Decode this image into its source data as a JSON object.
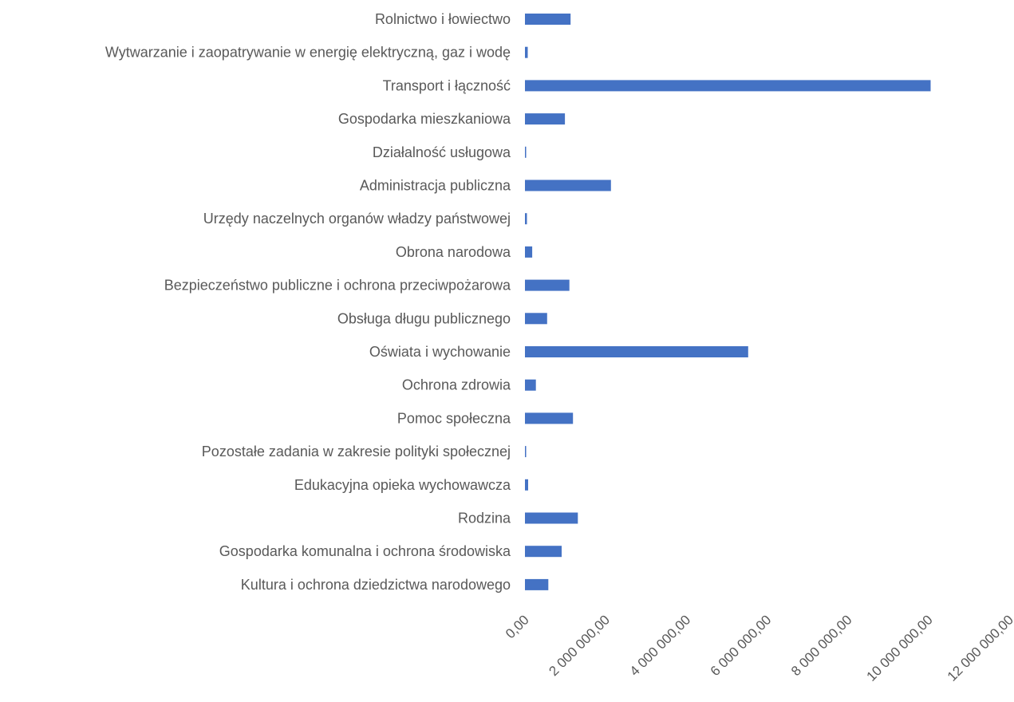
{
  "chart_data": {
    "type": "bar",
    "orientation": "horizontal",
    "title": "",
    "xlabel": "",
    "ylabel": "",
    "xlim": [
      0,
      12000000
    ],
    "grid": false,
    "legend": "none",
    "bar_color": "#4472C4",
    "categories": [
      "Rolnictwo i łowiectwo",
      "Wytwarzanie i zaopatrywanie w energię elektryczną, gaz i wodę",
      "Transport i łączność",
      "Gospodarka mieszkaniowa",
      "Działalność usługowa",
      "Administracja publiczna",
      "Urzędy naczelnych organów władzy państwowej",
      "Obrona narodowa",
      "Bezpieczeństwo publiczne i ochrona przeciwpożarowa",
      "Obsługa długu publicznego",
      "Oświata i wychowanie",
      "Ochrona zdrowia",
      "Pomoc społeczna",
      "Pozostałe zadania w zakresie polityki społecznej",
      "Edukacyjna opieka wychowawcza",
      "Rodzina",
      "Gospodarka komunalna i ochrona środowiska",
      "Kultura i ochrona dziedzictwa narodowego"
    ],
    "values": [
      1130000,
      70000,
      10050000,
      990000,
      30000,
      2130000,
      50000,
      180000,
      1100000,
      550000,
      5530000,
      270000,
      1190000,
      30000,
      80000,
      1310000,
      910000,
      580000
    ],
    "ticks": [
      0,
      2000000,
      4000000,
      6000000,
      8000000,
      10000000,
      12000000
    ],
    "tick_labels": [
      "0,00",
      "2 000 000,00",
      "4 000 000,00",
      "6 000 000,00",
      "8 000 000,00",
      "10 000 000,00",
      "12 000 000,00"
    ]
  }
}
